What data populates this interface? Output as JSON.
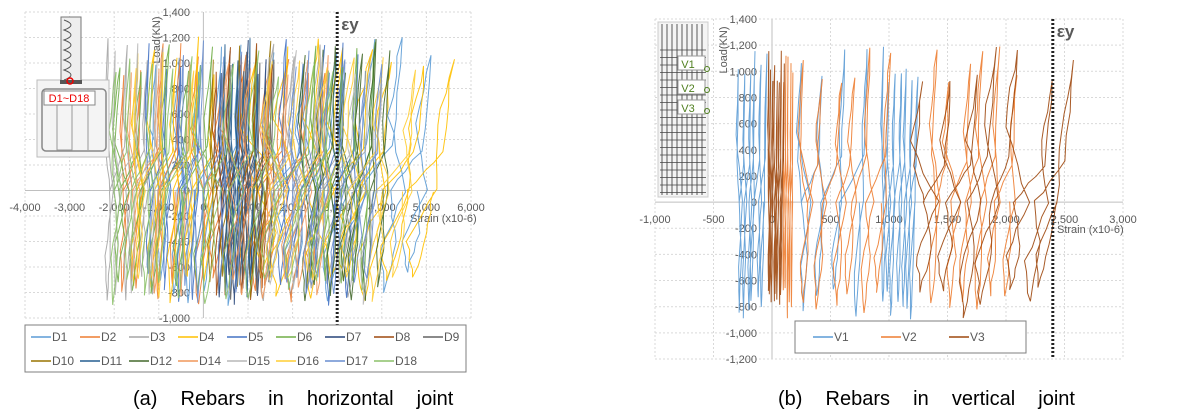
{
  "captions": {
    "a": "(a)  Rebars  in  horizontal  joint",
    "b": "(b)  Rebars  in  vertical  joint"
  },
  "chart_data": [
    {
      "type": "line",
      "id": "a",
      "title": "Rebars in horizontal joint",
      "xlabel": "Strain (x10-6)",
      "ylabel": "Load(KN)",
      "xlim": [
        -4000,
        6000
      ],
      "ylim": [
        -1000,
        1400
      ],
      "xticks": [
        -4000,
        -3000,
        -2000,
        -1000,
        0,
        1000,
        2000,
        3000,
        4000,
        5000,
        6000
      ],
      "xtick_labels": [
        "-4,000",
        "-3,000",
        "-2,000",
        "-1,000",
        "0",
        "1,000",
        "2,000",
        "3,000",
        "4,000",
        "5,000",
        "6,000"
      ],
      "yticks": [
        -1000,
        -800,
        -600,
        -400,
        -200,
        0,
        200,
        400,
        600,
        800,
        1000,
        1200,
        1400
      ],
      "ytick_labels": [
        "-1,000",
        "-800",
        "-600",
        "-400",
        "-200",
        "0",
        "200",
        "400",
        "600",
        "800",
        "1,000",
        "1,200",
        "1,400"
      ],
      "grid": true,
      "legend_position": "bottom",
      "annotation": {
        "label": "εy",
        "strain": 3000
      },
      "inset_label": "D1~D18",
      "series": [
        {
          "name": "D1",
          "color": "#5B9BD5",
          "clusters": [
            [
              -1000,
              800,
              5
            ],
            [
              1500,
              5200,
              6
            ]
          ]
        },
        {
          "name": "D2",
          "color": "#ED7D31",
          "clusters": [
            [
              -1800,
              -500,
              4
            ],
            [
              0,
              2800,
              7
            ]
          ]
        },
        {
          "name": "D3",
          "color": "#A5A5A5",
          "clusters": [
            [
              -2100,
              -900,
              4
            ],
            [
              1000,
              3800,
              6
            ]
          ]
        },
        {
          "name": "D4",
          "color": "#FFC000",
          "clusters": [
            [
              -1500,
              300,
              5
            ],
            [
              1200,
              5600,
              8
            ]
          ]
        },
        {
          "name": "D5",
          "color": "#4472C4",
          "clusters": [
            [
              -1200,
              -100,
              4
            ],
            [
              1800,
              3500,
              5
            ]
          ]
        },
        {
          "name": "D6",
          "color": "#70AD47",
          "clusters": [
            [
              -1900,
              200,
              5
            ],
            [
              2500,
              3800,
              5
            ]
          ]
        },
        {
          "name": "D7",
          "color": "#264478",
          "clusters": [
            [
              400,
              1400,
              6
            ]
          ]
        },
        {
          "name": "D8",
          "color": "#9E480E",
          "clusters": [
            [
              300,
              1500,
              5
            ]
          ]
        },
        {
          "name": "D9",
          "color": "#636363",
          "clusters": [
            [
              600,
              1600,
              4
            ]
          ]
        },
        {
          "name": "D10",
          "color": "#997300",
          "clusters": [
            [
              200,
              1500,
              5
            ]
          ]
        },
        {
          "name": "D11",
          "color": "#255E91",
          "clusters": [
            [
              500,
              1200,
              6
            ]
          ]
        },
        {
          "name": "D12",
          "color": "#43682B",
          "clusters": [
            [
              2300,
              4200,
              7
            ]
          ]
        },
        {
          "name": "D14",
          "color": "#F1975A",
          "clusters": [
            [
              -1600,
              -300,
              3
            ],
            [
              600,
              2900,
              6
            ]
          ]
        },
        {
          "name": "D15",
          "color": "#B7B7B7",
          "clusters": [
            [
              -2000,
              -1000,
              3
            ],
            [
              1500,
              4000,
              5
            ]
          ]
        },
        {
          "name": "D16",
          "color": "#FFCD33",
          "clusters": [
            [
              -1500,
              -200,
              3
            ],
            [
              1500,
              4800,
              6
            ]
          ]
        },
        {
          "name": "D17",
          "color": "#698ED0",
          "clusters": [
            [
              -400,
              900,
              4
            ],
            [
              2000,
              4000,
              6
            ]
          ]
        },
        {
          "name": "D18",
          "color": "#8CC168",
          "clusters": [
            [
              -2000,
              -300,
              5
            ],
            [
              0,
              3000,
              6
            ]
          ]
        }
      ]
    },
    {
      "type": "line",
      "id": "b",
      "title": "Rebars in vertical joint",
      "xlabel": "Strain (x10-6)",
      "ylabel": "Load(KN)",
      "xlim": [
        -1000,
        3000
      ],
      "ylim": [
        -1200,
        1400
      ],
      "xticks": [
        -1000,
        -500,
        0,
        500,
        1000,
        1500,
        2000,
        2500,
        3000
      ],
      "xtick_labels": [
        "-1,000",
        "-500",
        "0",
        "500",
        "1,000",
        "1,500",
        "2,000",
        "2,500",
        "3,000"
      ],
      "yticks": [
        -1200,
        -1000,
        -800,
        -600,
        -400,
        -200,
        0,
        200,
        400,
        600,
        800,
        1000,
        1200,
        1400
      ],
      "ytick_labels": [
        "-1,200",
        "-1,000",
        "-800",
        "-600",
        "-400",
        "-200",
        "0",
        "200",
        "400",
        "600",
        "800",
        "1,000",
        "1,200",
        "1,400"
      ],
      "grid": true,
      "legend_position": "bottom-center",
      "annotation": {
        "label": "εy",
        "strain": 2400
      },
      "inset_labels": [
        "V1",
        "V2",
        "V3"
      ],
      "series": [
        {
          "name": "V1",
          "color": "#5B9BD5",
          "clusters": [
            [
              -280,
              -50,
              6
            ],
            [
              250,
              800,
              4
            ],
            [
              950,
              1250,
              7
            ]
          ]
        },
        {
          "name": "V2",
          "color": "#ED7D31",
          "clusters": [
            [
              100,
              180,
              5
            ],
            [
              300,
              1000,
              6
            ],
            [
              1400,
              2100,
              6
            ]
          ]
        },
        {
          "name": "V3",
          "color": "#9E480E",
          "clusters": [
            [
              -30,
              100,
              8
            ],
            [
              1300,
              2560,
              7
            ]
          ]
        }
      ]
    }
  ]
}
